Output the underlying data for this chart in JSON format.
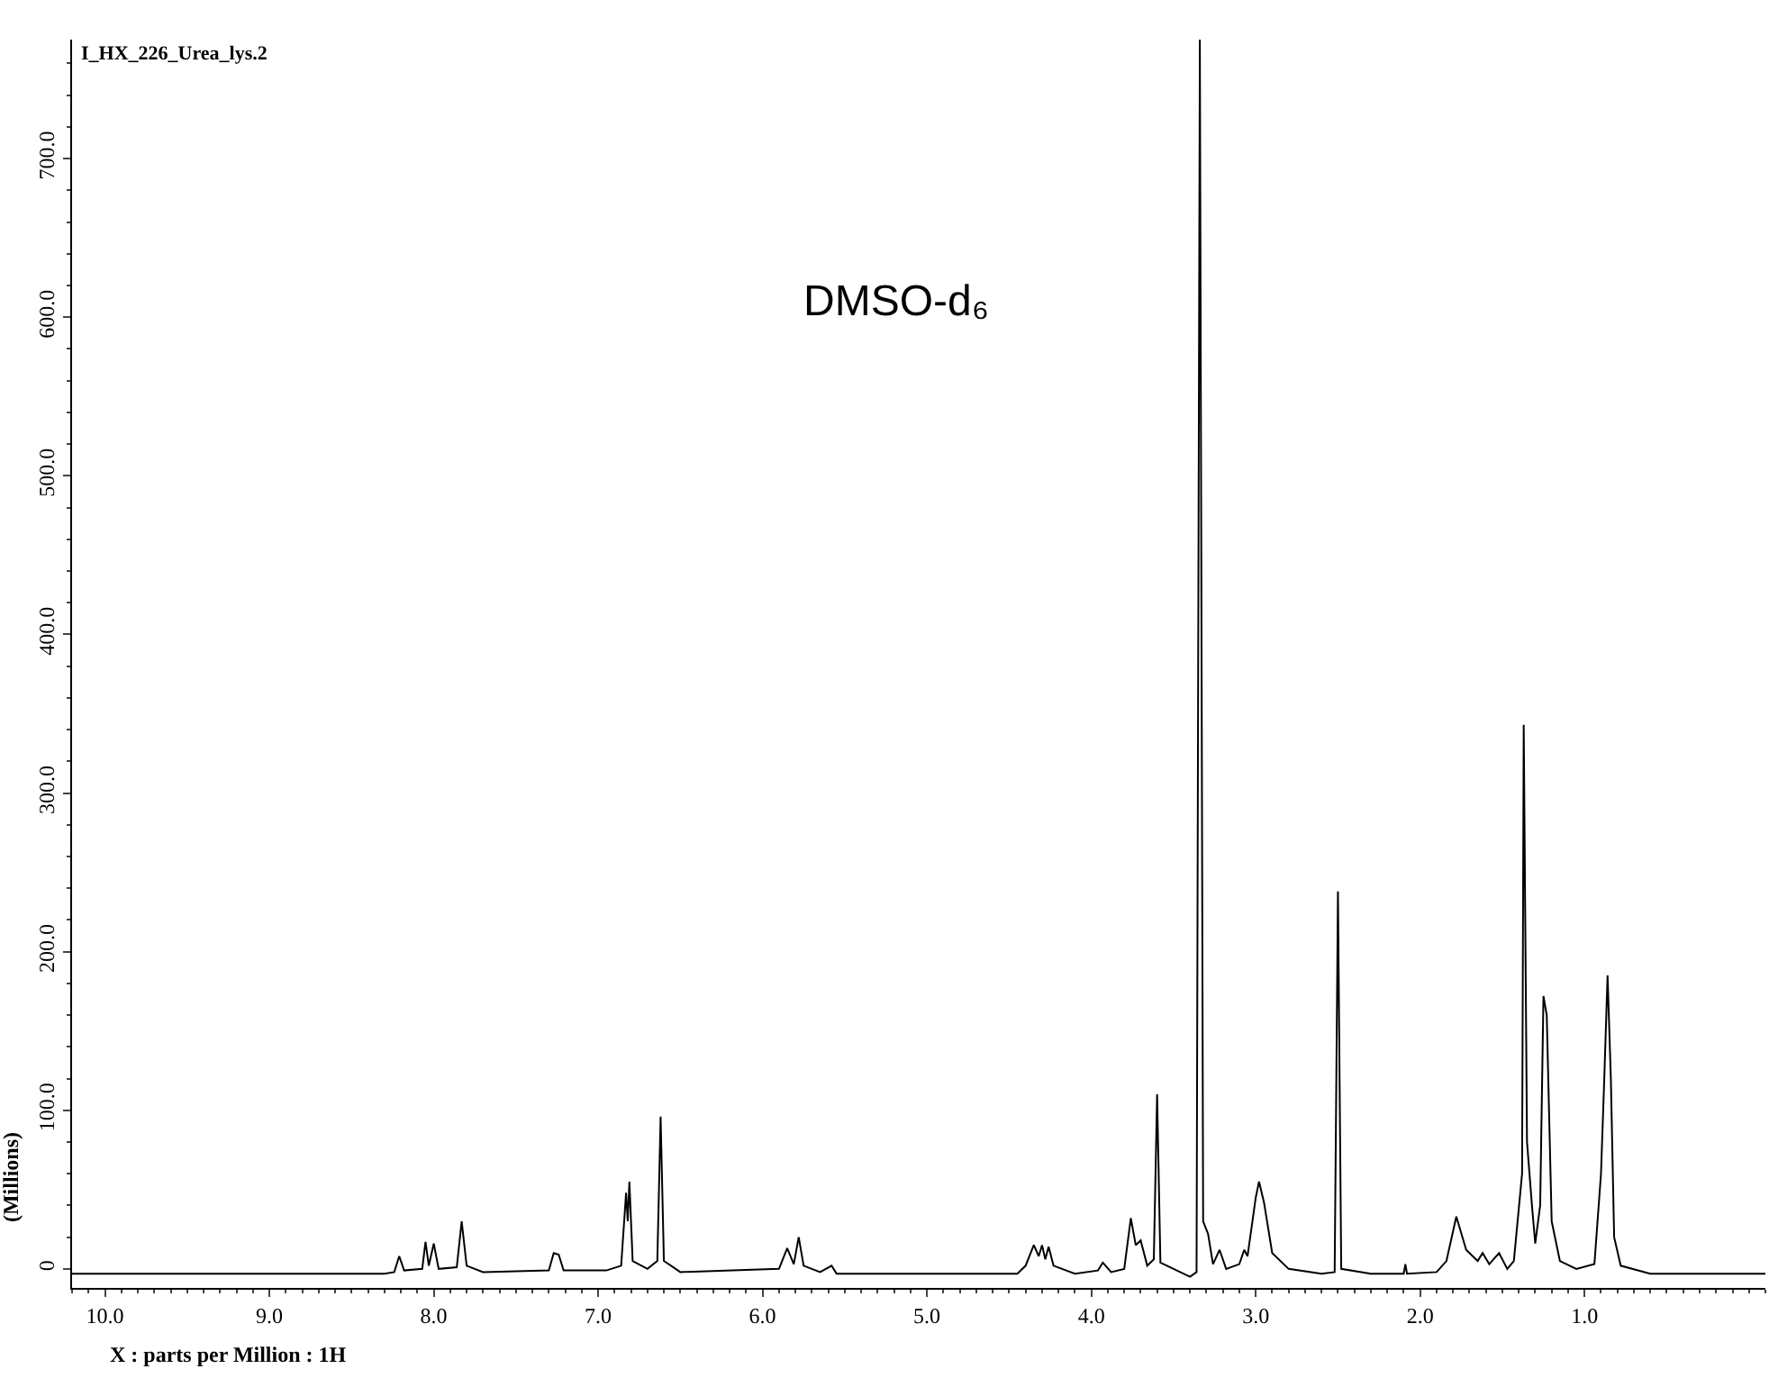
{
  "chart_data": {
    "type": "line",
    "title": "I_HX_226_Urea_lys.2",
    "xlabel": "X : parts per Million : 1H",
    "ylabel": "(Millions)",
    "annotations": [
      "DMSO-d₆"
    ],
    "x": [
      10.2,
      8.3,
      8.24,
      8.21,
      8.18,
      8.07,
      8.05,
      8.03,
      8.0,
      7.97,
      7.86,
      7.83,
      7.8,
      7.7,
      7.3,
      7.27,
      7.24,
      7.21,
      6.95,
      6.86,
      6.83,
      6.82,
      6.81,
      6.79,
      6.7,
      6.64,
      6.62,
      6.6,
      6.5,
      5.9,
      5.85,
      5.81,
      5.78,
      5.75,
      5.65,
      5.58,
      5.55,
      4.45,
      4.4,
      4.35,
      4.32,
      4.3,
      4.28,
      4.26,
      4.23,
      4.1,
      3.96,
      3.93,
      3.88,
      3.8,
      3.76,
      3.73,
      3.7,
      3.66,
      3.62,
      3.6,
      3.58,
      3.4,
      3.36,
      3.34,
      3.32,
      3.29,
      3.26,
      3.22,
      3.18,
      3.1,
      3.07,
      3.05,
      3.0,
      2.98,
      2.95,
      2.9,
      2.8,
      2.6,
      2.52,
      2.5,
      2.48,
      2.3,
      2.1,
      2.09,
      2.08,
      1.9,
      1.84,
      1.78,
      1.72,
      1.65,
      1.62,
      1.58,
      1.52,
      1.47,
      1.43,
      1.38,
      1.37,
      1.35,
      1.32,
      1.3,
      1.27,
      1.25,
      1.23,
      1.2,
      1.15,
      1.05,
      0.94,
      0.9,
      0.88,
      0.86,
      0.84,
      0.82,
      0.78,
      0.6,
      -0.1
    ],
    "series": [
      {
        "color": "#000000",
        "values": [
          -3,
          -3,
          -2,
          8,
          -1,
          0,
          17,
          2,
          16,
          0,
          1,
          30,
          2,
          -2,
          -1,
          10,
          9,
          -1,
          -1,
          2,
          48,
          30,
          55,
          5,
          0,
          5,
          96,
          5,
          -2,
          0,
          13,
          3,
          20,
          2,
          -2,
          2,
          -3,
          -3,
          2,
          15,
          8,
          15,
          6,
          14,
          2,
          -3,
          -1,
          4,
          -2,
          0,
          32,
          15,
          18,
          2,
          6,
          110,
          4,
          -5,
          -2,
          775,
          30,
          22,
          3,
          12,
          0,
          3,
          12,
          8,
          45,
          55,
          42,
          10,
          0,
          -3,
          -2,
          238,
          0,
          -3,
          -3,
          3,
          -3,
          -2,
          5,
          33,
          12,
          5,
          10,
          3,
          10,
          0,
          5,
          60,
          343,
          80,
          40,
          16,
          40,
          172,
          160,
          30,
          5,
          0,
          3,
          60,
          120,
          185,
          120,
          20,
          2,
          -3,
          -3
        ]
      }
    ],
    "xlim": [
      10.2,
      -0.1
    ],
    "ylim": [
      -12,
      775
    ],
    "xticks": [
      {
        "value": 10,
        "label": "10.0"
      },
      {
        "value": 9,
        "label": "9.0"
      },
      {
        "value": 8,
        "label": "8.0"
      },
      {
        "value": 7,
        "label": "7.0"
      },
      {
        "value": 6,
        "label": "6.0"
      },
      {
        "value": 5,
        "label": "5.0"
      },
      {
        "value": 4,
        "label": "4.0"
      },
      {
        "value": 3,
        "label": "3.0"
      },
      {
        "value": 2,
        "label": "2.0"
      },
      {
        "value": 1,
        "label": "1.0"
      }
    ],
    "yticks": [
      0,
      {
        "value": 100,
        "label": "100.0"
      },
      {
        "value": 200,
        "label": "200.0"
      },
      {
        "value": 300,
        "label": "300.0"
      },
      {
        "value": 400,
        "label": "400.0"
      },
      {
        "value": 500,
        "label": "500.0"
      },
      {
        "value": 600,
        "label": "600.0"
      },
      {
        "value": 700,
        "label": "700.0"
      }
    ],
    "marker": "none",
    "line_style": "solid"
  }
}
